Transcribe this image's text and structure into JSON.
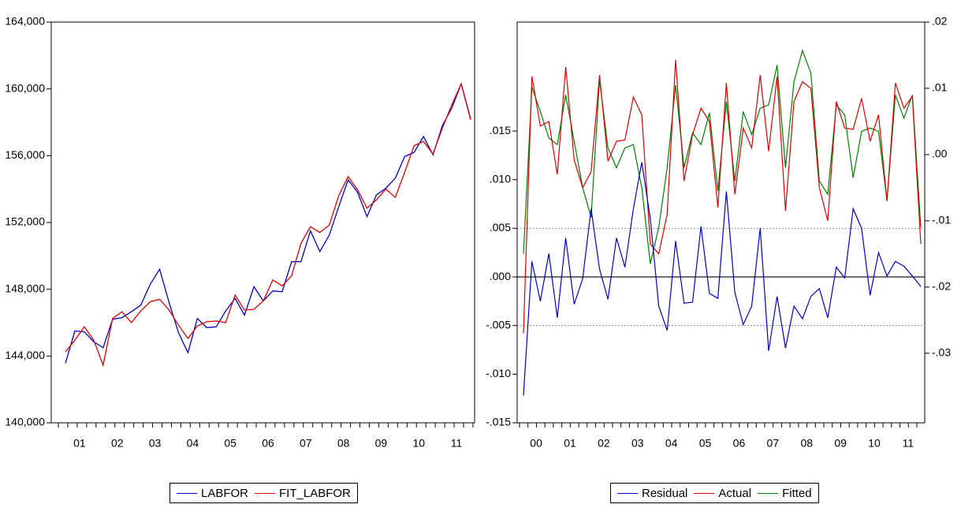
{
  "chart_data": [
    {
      "type": "line",
      "title": "",
      "xlabel": "",
      "ylabel": "",
      "x_tick_labels": [
        "01",
        "02",
        "03",
        "04",
        "05",
        "06",
        "07",
        "08",
        "09",
        "10",
        "11"
      ],
      "y_ticks": [
        140000,
        144000,
        148000,
        152000,
        156000,
        160000,
        164000
      ],
      "y_tick_labels": [
        "140,000",
        "144,000",
        "148,000",
        "152,000",
        "156,000",
        "160,000",
        "164,000"
      ],
      "ylim": [
        140000,
        164000
      ],
      "grid": false,
      "legend": "bottom-center",
      "series": [
        {
          "name": "LABFOR",
          "color": "#0000cc",
          "values": [
            143560,
            145500,
            145450,
            144850,
            144500,
            146200,
            146300,
            146650,
            147050,
            148300,
            149200,
            147200,
            145400,
            144200,
            146250,
            145700,
            145750,
            146700,
            147450,
            146450,
            148150,
            147300,
            147900,
            147850,
            149650,
            149650,
            151500,
            150250,
            151250,
            152950,
            154550,
            153800,
            152350,
            153650,
            154050,
            154650,
            155950,
            156200,
            157150,
            156050,
            157800,
            158850,
            160300,
            158200
          ]
        },
        {
          "name": "FIT_LABFOR",
          "color": "#dd0000",
          "values": [
            144250,
            144950,
            145750,
            144950,
            143450,
            146250,
            146650,
            146000,
            146700,
            147250,
            147400,
            146750,
            145850,
            145050,
            145800,
            146050,
            146100,
            146000,
            147650,
            146750,
            146800,
            147300,
            148550,
            148200,
            148800,
            150750,
            151750,
            151400,
            151850,
            153600,
            154750,
            153950,
            152850,
            153350,
            154000,
            153500,
            155000,
            156600,
            156850,
            156100,
            157650,
            159050,
            160300,
            158150
          ]
        }
      ]
    },
    {
      "type": "line",
      "title": "",
      "xlabel": "",
      "ylabel": "",
      "x_tick_labels": [
        "00",
        "01",
        "02",
        "03",
        "04",
        "05",
        "06",
        "07",
        "08",
        "09",
        "10",
        "11"
      ],
      "left_axis": {
        "ticks": [
          -0.015,
          -0.01,
          -0.005,
          0.0,
          0.005,
          0.01,
          0.015
        ],
        "tick_labels": [
          "-.015",
          "-.010",
          "-.005",
          ".000",
          ".005",
          ".010",
          ".015"
        ],
        "range": [
          -0.015,
          0.0262
        ]
      },
      "right_axis": {
        "ticks": [
          -0.03,
          -0.02,
          -0.01,
          0.0,
          0.01,
          0.02
        ],
        "tick_labels": [
          "-.03",
          "-.02",
          "-.01",
          ".00",
          ".01",
          ".02"
        ],
        "range": [
          -0.0405,
          0.02
        ]
      },
      "reference_lines": [
        0.005,
        0.0,
        -0.005
      ],
      "grid": false,
      "legend": "bottom-center",
      "series": [
        {
          "name": "Residual",
          "color": "#0000cc",
          "axis": "left",
          "values": [
            -0.0122,
            0.0016,
            -0.0025,
            0.0024,
            -0.0042,
            0.004,
            -0.0028,
            -0.0002,
            0.007,
            0.0008,
            -0.0023,
            0.004,
            0.001,
            0.007,
            0.0118,
            0.006,
            -0.003,
            -0.0055,
            0.0037,
            -0.0027,
            -0.0026,
            0.0052,
            -0.0017,
            -0.0022,
            0.0088,
            -0.0016,
            -0.0049,
            -0.003,
            0.005,
            -0.0076,
            -0.002,
            -0.0073,
            -0.003,
            -0.0043,
            -0.002,
            -0.0012,
            -0.0042,
            0.001,
            -0.0001,
            0.007,
            0.005,
            -0.0019,
            0.0025,
            0.0001,
            0.0016,
            0.0011,
            0.0001,
            -0.001
          ]
        },
        {
          "name": "Actual",
          "color": "#dd0000",
          "axis": "right",
          "values": [
            -0.027,
            0.0118,
            0.0043,
            0.005,
            -0.003,
            0.0132,
            -0.0008,
            -0.005,
            -0.0026,
            0.012,
            -0.001,
            0.002,
            0.0022,
            0.0087,
            0.006,
            -0.0135,
            -0.015,
            -0.009,
            0.0143,
            -0.004,
            0.003,
            0.007,
            0.005,
            -0.008,
            0.0108,
            -0.006,
            0.004,
            0.001,
            0.012,
            0.0005,
            0.0118,
            -0.0085,
            0.008,
            0.011,
            0.01,
            -0.005,
            -0.01,
            0.008,
            0.004,
            0.0038,
            0.0085,
            0.002,
            0.006,
            -0.007,
            0.0108,
            0.007,
            0.0088,
            -0.0135
          ]
        },
        {
          "name": "Fitted",
          "color": "#008000",
          "axis": "right",
          "values": [
            -0.015,
            0.0102,
            0.0065,
            0.0025,
            0.0015,
            0.009,
            0.002,
            -0.005,
            -0.0095,
            0.0113,
            0.001,
            -0.002,
            0.001,
            0.0015,
            -0.005,
            -0.0165,
            -0.011,
            -0.002,
            0.0105,
            -0.002,
            0.0033,
            0.0015,
            0.0063,
            -0.0055,
            0.008,
            -0.004,
            0.0065,
            0.003,
            0.007,
            0.0075,
            0.0135,
            -0.002,
            0.011,
            0.0157,
            0.0123,
            -0.004,
            -0.006,
            0.0075,
            0.006,
            -0.0035,
            0.0035,
            0.004,
            0.0035,
            -0.007,
            0.009,
            0.0055,
            0.009,
            -0.011
          ]
        }
      ]
    }
  ]
}
